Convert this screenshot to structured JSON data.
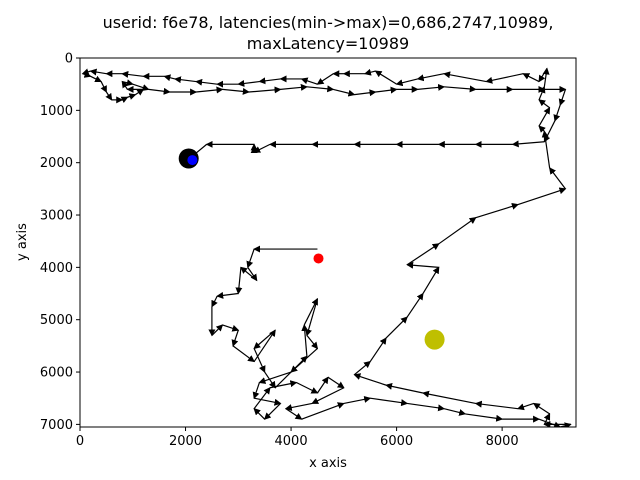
{
  "chart_data": {
    "type": "line",
    "title_line1": "userid: f6e78, latencies(min->max)=0,686,2747,10989,",
    "title_line2": "maxLatency=10989",
    "xlabel": "x axis",
    "ylabel": "y axis",
    "xlim": [
      0,
      9400
    ],
    "ylim": [
      7050,
      0
    ],
    "xticks": [
      0,
      2000,
      4000,
      6000,
      8000
    ],
    "yticks": [
      0,
      1000,
      2000,
      3000,
      4000,
      5000,
      6000,
      7000
    ],
    "grid": false,
    "path_color": "#000000",
    "path": [
      [
        4500,
        3650
      ],
      [
        3300,
        3650
      ],
      [
        3180,
        4000
      ],
      [
        3350,
        4250
      ],
      [
        3050,
        4000
      ],
      [
        3000,
        4500
      ],
      [
        2600,
        4550
      ],
      [
        2500,
        4750
      ],
      [
        2500,
        5300
      ],
      [
        2700,
        5100
      ],
      [
        3000,
        5200
      ],
      [
        2900,
        5500
      ],
      [
        3300,
        5800
      ],
      [
        3700,
        5200
      ],
      [
        3300,
        5550
      ],
      [
        3500,
        6000
      ],
      [
        3700,
        6300
      ],
      [
        4300,
        5700
      ],
      [
        4250,
        5100
      ],
      [
        4500,
        4600
      ],
      [
        4300,
        5300
      ],
      [
        4500,
        5550
      ],
      [
        4000,
        6000
      ],
      [
        3400,
        6200
      ],
      [
        3300,
        6500
      ],
      [
        3800,
        6600
      ],
      [
        3500,
        6900
      ],
      [
        3300,
        6700
      ],
      [
        3600,
        6300
      ],
      [
        4100,
        6200
      ],
      [
        4500,
        6400
      ],
      [
        4700,
        6100
      ],
      [
        5000,
        6300
      ],
      [
        4400,
        6600
      ],
      [
        3900,
        6700
      ],
      [
        4200,
        6900
      ],
      [
        5000,
        6600
      ],
      [
        5500,
        6500
      ],
      [
        6200,
        6600
      ],
      [
        6900,
        6700
      ],
      [
        7300,
        6800
      ],
      [
        8000,
        6900
      ],
      [
        8700,
        6900
      ],
      [
        9100,
        7050
      ],
      [
        9300,
        7000
      ],
      [
        8800,
        7000
      ],
      [
        8900,
        6800
      ],
      [
        8600,
        6600
      ],
      [
        8300,
        6700
      ],
      [
        7500,
        6600
      ],
      [
        6500,
        6400
      ],
      [
        5800,
        6250
      ],
      [
        5200,
        6050
      ],
      [
        5500,
        5800
      ],
      [
        5800,
        5350
      ],
      [
        6200,
        4950
      ],
      [
        6500,
        4500
      ],
      [
        6800,
        4000
      ],
      [
        6200,
        3950
      ],
      [
        6800,
        3550
      ],
      [
        7500,
        3050
      ],
      [
        8300,
        2800
      ],
      [
        9200,
        2500
      ],
      [
        8900,
        2100
      ],
      [
        8800,
        1400
      ],
      [
        8700,
        1300
      ],
      [
        8900,
        950
      ],
      [
        8700,
        800
      ],
      [
        8800,
        550
      ],
      [
        8850,
        200
      ],
      [
        8700,
        450
      ],
      [
        8400,
        300
      ],
      [
        7700,
        450
      ],
      [
        6900,
        300
      ],
      [
        6400,
        400
      ],
      [
        6000,
        500
      ],
      [
        5600,
        250
      ],
      [
        5400,
        300
      ],
      [
        5000,
        300
      ],
      [
        4800,
        300
      ],
      [
        4500,
        500
      ],
      [
        4200,
        400
      ],
      [
        3800,
        400
      ],
      [
        3400,
        450
      ],
      [
        3000,
        500
      ],
      [
        2600,
        500
      ],
      [
        2200,
        450
      ],
      [
        1800,
        400
      ],
      [
        1600,
        350
      ],
      [
        1200,
        350
      ],
      [
        800,
        300
      ],
      [
        500,
        300
      ],
      [
        200,
        250
      ],
      [
        50,
        300
      ],
      [
        200,
        350
      ],
      [
        400,
        450
      ],
      [
        500,
        650
      ],
      [
        600,
        800
      ],
      [
        800,
        800
      ],
      [
        900,
        750
      ],
      [
        1050,
        700
      ],
      [
        1200,
        600
      ],
      [
        900,
        600
      ],
      [
        800,
        450
      ],
      [
        1000,
        500
      ],
      [
        1300,
        600
      ],
      [
        1700,
        650
      ],
      [
        2200,
        650
      ],
      [
        2700,
        600
      ],
      [
        3200,
        650
      ],
      [
        3800,
        600
      ],
      [
        4300,
        550
      ],
      [
        4800,
        600
      ],
      [
        5200,
        700
      ],
      [
        5600,
        650
      ],
      [
        6000,
        600
      ],
      [
        6400,
        600
      ],
      [
        6900,
        550
      ],
      [
        7500,
        600
      ],
      [
        8200,
        600
      ],
      [
        8800,
        600
      ],
      [
        9200,
        600
      ],
      [
        9100,
        900
      ],
      [
        9000,
        1200
      ],
      [
        8800,
        1600
      ],
      [
        8200,
        1650
      ],
      [
        7500,
        1650
      ],
      [
        6800,
        1650
      ],
      [
        6000,
        1650
      ],
      [
        5200,
        1650
      ],
      [
        4400,
        1650
      ],
      [
        3600,
        1650
      ],
      [
        3300,
        1800
      ],
      [
        3300,
        1700
      ],
      [
        3300,
        1650
      ],
      [
        2400,
        1650
      ],
      [
        2100,
        1900
      ]
    ],
    "start_point": {
      "x": 4520,
      "y": 3830,
      "color": "#ff0000"
    },
    "end_point_outer": {
      "x": 2060,
      "y": 1920,
      "color": "#000000"
    },
    "end_point_inner": {
      "x": 2130,
      "y": 1950,
      "color": "#0000ff"
    },
    "marker_olive": {
      "x": 6720,
      "y": 5380,
      "color": "#bfbf00"
    }
  }
}
